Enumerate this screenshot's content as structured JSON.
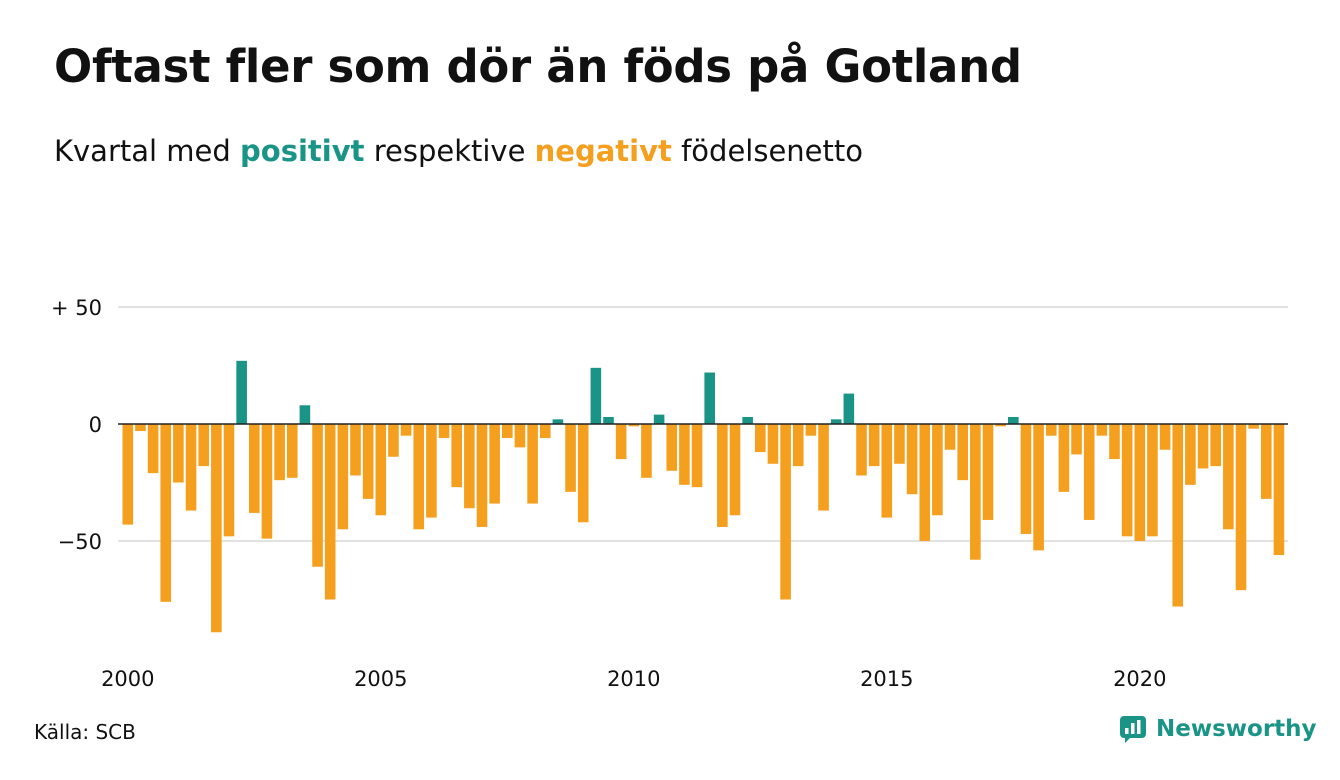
{
  "title": "Oftast fler som dör än föds på Gotland",
  "subtitle": {
    "before": "Kvartal med",
    "positive_word": "positivt",
    "middle": "respektive",
    "negative_word": "negativt",
    "after": "födelsenetto"
  },
  "source": "Källa: SCB",
  "brand": "Newsworthy",
  "colors": {
    "positive": "#1b9488",
    "negative": "#f59f1f",
    "grid": "#d9d9d9",
    "text": "#111111"
  },
  "chart_data": {
    "type": "bar",
    "title": "Oftast fler som dör än föds på Gotland",
    "subtitle": "Kvartal med positivt respektive negativt födelsenetto",
    "xlabel": "",
    "ylabel": "",
    "start": {
      "year": 2000,
      "quarter": 1
    },
    "x_ticks": [
      "2000",
      "2005",
      "2010",
      "2015",
      "2020"
    ],
    "y_ticks": [
      {
        "value": 50,
        "label": "+ 50"
      },
      {
        "value": 0,
        "label": "0"
      },
      {
        "value": -50,
        "label": "−50"
      }
    ],
    "ylim": [
      -92,
      52
    ],
    "grid": true,
    "legend": "none",
    "values": [
      -43,
      -3,
      -21,
      -76,
      -25,
      -37,
      -18,
      -89,
      -48,
      27,
      -38,
      -49,
      -24,
      -23,
      8,
      -61,
      -75,
      -45,
      -22,
      -32,
      -39,
      -14,
      -5,
      -45,
      -40,
      -6,
      -27,
      -36,
      -44,
      -34,
      -6,
      -10,
      -34,
      -6,
      2,
      -29,
      -42,
      24,
      3,
      -15,
      -1,
      -23,
      4,
      -20,
      -26,
      -27,
      22,
      -44,
      -39,
      3,
      -12,
      -17,
      -75,
      -18,
      -5,
      -37,
      2,
      13,
      -22,
      -18,
      -40,
      -17,
      -30,
      -50,
      -39,
      -11,
      -24,
      -58,
      -41,
      -1,
      3,
      -47,
      -54,
      -5,
      -29,
      -13,
      -41,
      -5,
      -15,
      -48,
      -50,
      -48,
      -11,
      -78,
      -26,
      -19,
      -18,
      -45,
      -71,
      -2,
      -32,
      -56
    ]
  }
}
